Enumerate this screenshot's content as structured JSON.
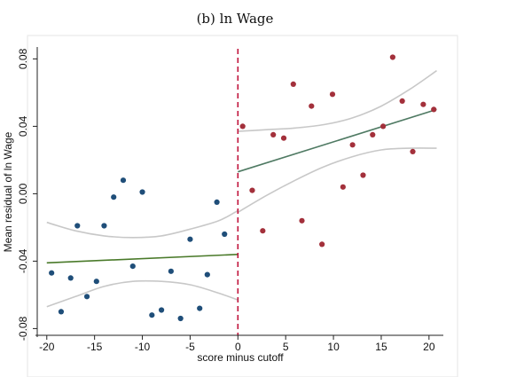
{
  "page": {
    "subtitle": "(b) ln Wage"
  },
  "chart_data": {
    "type": "scatter",
    "title": "(b) ln Wage",
    "xlabel": "score minus cutoff",
    "ylabel": "Mean residual of ln Wage",
    "xlim": [
      -21,
      21.5
    ],
    "ylim": [
      -0.084,
      0.086
    ],
    "xticks": [
      -20,
      -15,
      -10,
      -5,
      0,
      5,
      10,
      15,
      20
    ],
    "xtick_labels": [
      "-20",
      "-15",
      "-10",
      "-5",
      "0",
      "5",
      "10",
      "15",
      "20"
    ],
    "yticks": [
      -0.08,
      -0.04,
      0.0,
      0.04,
      0.08
    ],
    "ytick_labels": [
      "-0.08",
      "-0.04",
      "0.00",
      "0.04",
      "0.08"
    ],
    "grid": false,
    "cutoff": 0,
    "colors": {
      "left_points": "#1f4e79",
      "right_points": "#a3303b",
      "left_fit": "#4a7a2a",
      "right_fit": "#4f7a63",
      "ci": "#c8c8c8",
      "cutoff_line": "#c0143c"
    },
    "series": [
      {
        "side": "left",
        "x": [
          -19.5,
          -18.5,
          -17.5,
          -16.8,
          -15.8,
          -14.8,
          -14.0,
          -13.0,
          -12.0,
          -11.0,
          -10.0,
          -9.0,
          -8.0,
          -7.0,
          -6.0,
          -5.0,
          -4.0,
          -3.2,
          -2.2,
          -1.4
        ],
        "y": [
          -0.047,
          -0.07,
          -0.05,
          -0.019,
          -0.061,
          -0.052,
          -0.019,
          -0.002,
          0.008,
          -0.043,
          0.001,
          -0.072,
          -0.069,
          -0.046,
          -0.074,
          -0.027,
          -0.068,
          -0.048,
          -0.005,
          -0.024
        ]
      },
      {
        "side": "right",
        "x": [
          0.5,
          1.5,
          2.6,
          3.7,
          4.8,
          5.8,
          6.7,
          7.7,
          8.8,
          9.9,
          11.0,
          12.0,
          13.1,
          14.1,
          15.2,
          16.2,
          17.2,
          18.3,
          19.4,
          20.5
        ],
        "y": [
          0.04,
          0.002,
          -0.022,
          0.035,
          0.033,
          0.065,
          -0.016,
          0.052,
          -0.03,
          0.059,
          0.004,
          0.029,
          0.011,
          0.035,
          0.04,
          0.081,
          0.055,
          0.025,
          0.053,
          0.05
        ]
      }
    ],
    "fit_lines": [
      {
        "side": "left",
        "x": [
          -20,
          0
        ],
        "y": [
          -0.041,
          -0.036
        ]
      },
      {
        "side": "right",
        "x": [
          0,
          20.8
        ],
        "y": [
          0.013,
          0.05
        ]
      }
    ],
    "confidence_bands": [
      {
        "side": "left",
        "bound": "upper",
        "x": [
          -20,
          -17,
          -14,
          -11,
          -8,
          -5,
          -2,
          0
        ],
        "y": [
          -0.017,
          -0.022,
          -0.025,
          -0.026,
          -0.025,
          -0.021,
          -0.016,
          -0.01
        ]
      },
      {
        "side": "left",
        "bound": "lower",
        "x": [
          -20,
          -17,
          -14,
          -11,
          -8,
          -5,
          -2,
          0
        ],
        "y": [
          -0.067,
          -0.061,
          -0.055,
          -0.052,
          -0.052,
          -0.054,
          -0.059,
          -0.063
        ]
      },
      {
        "side": "right",
        "bound": "upper",
        "x": [
          0,
          3,
          6,
          9,
          12,
          15,
          18,
          20.8
        ],
        "y": [
          0.037,
          0.038,
          0.039,
          0.041,
          0.045,
          0.052,
          0.062,
          0.073
        ]
      },
      {
        "side": "right",
        "bound": "lower",
        "x": [
          0,
          3,
          6,
          9,
          12,
          15,
          18,
          20.8
        ],
        "y": [
          -0.011,
          -0.001,
          0.008,
          0.016,
          0.022,
          0.026,
          0.027,
          0.027
        ]
      }
    ]
  }
}
